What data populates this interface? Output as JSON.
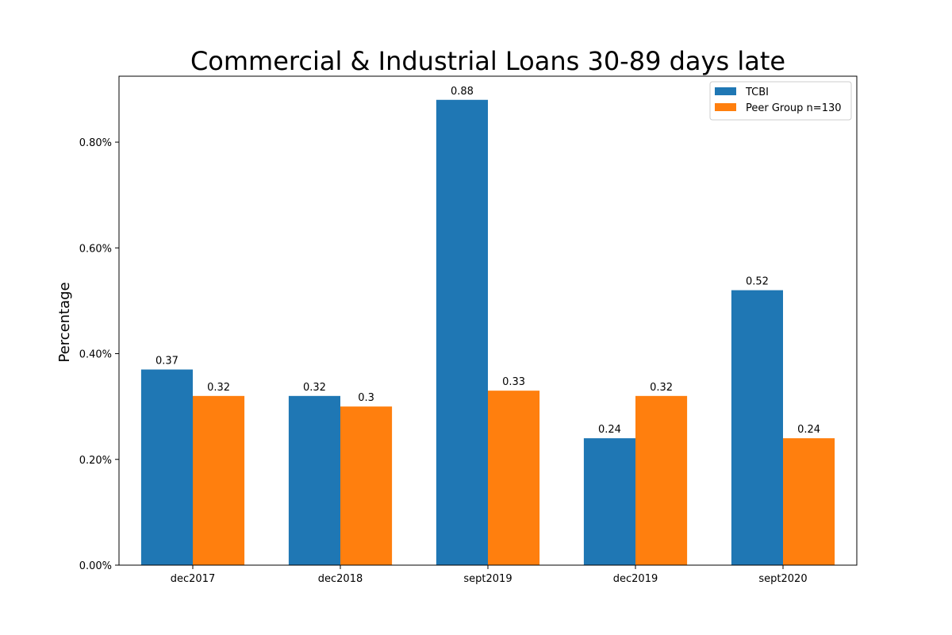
{
  "chart_data": {
    "type": "bar",
    "title": "Commercial & Industrial Loans 30-89 days late",
    "xlabel": "",
    "ylabel": "Percentage",
    "categories": [
      "dec2017",
      "dec2018",
      "sept2019",
      "dec2019",
      "sept2020"
    ],
    "series": [
      {
        "name": "TCBI",
        "values": [
          0.37,
          0.32,
          0.88,
          0.24,
          0.52
        ],
        "color": "#1f77b4"
      },
      {
        "name": "Peer Group n=130",
        "values": [
          0.32,
          0.3,
          0.33,
          0.32,
          0.24
        ],
        "color": "#ff7f0e"
      }
    ],
    "data_labels": [
      [
        "0.37",
        "0.32",
        "0.88",
        "0.24",
        "0.52"
      ],
      [
        "0.32",
        "0.3",
        "0.33",
        "0.32",
        "0.24"
      ]
    ],
    "ylim": [
      0,
      0.9247
    ],
    "yticks": [
      0,
      0.2,
      0.4,
      0.6,
      0.8
    ],
    "ytick_labels": [
      "0.00%",
      "0.20%",
      "0.40%",
      "0.60%",
      "0.80%"
    ],
    "grid": false,
    "legend_position": "top-right"
  }
}
